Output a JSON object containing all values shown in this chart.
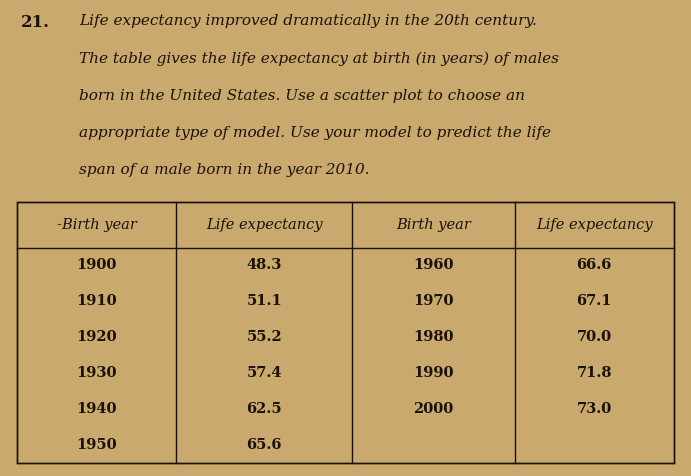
{
  "problem_number": "21.",
  "description_lines": [
    "Life expectancy improved dramatically in the 20th century.",
    "The table gives the life expectancy at birth (in years) of males",
    "born in the United States. Use a scatter plot to choose an",
    "appropriate type of model. Use your model to predict the life",
    "span of a male born in the year 2010."
  ],
  "headers": [
    "-Birth year",
    "Life expectancy",
    "Birth year",
    "Life expectancy"
  ],
  "col1_years": [
    "1900",
    "1910",
    "1920",
    "1930",
    "1940",
    "1950"
  ],
  "col1_values": [
    "48.3",
    "51.1",
    "55.2",
    "57.4",
    "62.5",
    "65.6"
  ],
  "col2_years": [
    "1960",
    "1970",
    "1980",
    "1990",
    "2000",
    ""
  ],
  "col2_values": [
    "66.6",
    "67.1",
    "70.0",
    "71.8",
    "73.0",
    ""
  ],
  "background_color": "#c9a96d",
  "table_bg_color": "#c9a96d",
  "text_color": "#1a1208",
  "font_size_text": 11.0,
  "font_size_table": 10.5,
  "font_size_number": 12.0
}
